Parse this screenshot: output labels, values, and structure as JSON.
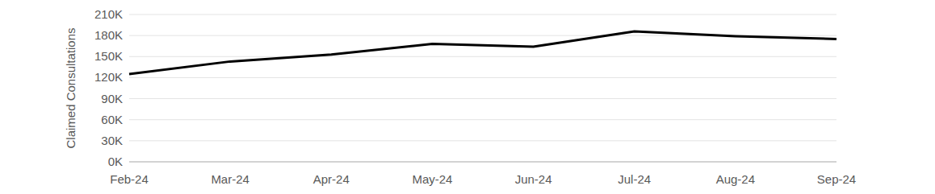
{
  "chart_data": {
    "type": "line",
    "ylabel": "Claimed Consultations",
    "categories": [
      "Feb-24",
      "Mar-24",
      "Apr-24",
      "May-24",
      "Jun-24",
      "Jul-24",
      "Aug-24",
      "Sep-24"
    ],
    "values": [
      125000,
      143000,
      153000,
      168000,
      164000,
      186000,
      179000,
      175000
    ],
    "color": "#000000",
    "ylim": [
      0,
      210000
    ],
    "yticks": [
      {
        "value": 0,
        "label": "0K"
      },
      {
        "value": 30000,
        "label": "30K"
      },
      {
        "value": 60000,
        "label": "60K"
      },
      {
        "value": 90000,
        "label": "90K"
      },
      {
        "value": 120000,
        "label": "120K"
      },
      {
        "value": 150000,
        "label": "150K"
      },
      {
        "value": 180000,
        "label": "180K"
      },
      {
        "value": 210000,
        "label": "210K"
      }
    ],
    "grid": true
  }
}
